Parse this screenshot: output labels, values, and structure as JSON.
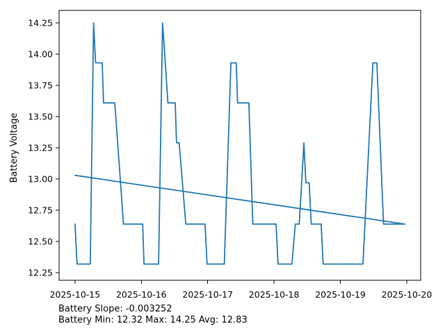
{
  "window": {
    "background": "#ffffff"
  },
  "colors": {
    "line": "#1f77b4",
    "trend": "#1f77b4",
    "ylabel": "#1f77b4",
    "axis": "#000000",
    "text": "#000000"
  },
  "chart_data": {
    "type": "line",
    "title": "",
    "xlabel": "",
    "ylabel": "Battery Voltage",
    "grid": false,
    "legend": "none",
    "x_tick_labels": [
      "2025-10-15",
      "2025-10-16",
      "2025-10-17",
      "2025-10-18",
      "2025-10-19",
      "2025-10-20"
    ],
    "x_tick_days": [
      0,
      1,
      2,
      3,
      4,
      5
    ],
    "y_ticks": [
      12.25,
      12.5,
      12.75,
      13.0,
      13.25,
      13.5,
      13.75,
      14.0,
      14.25
    ],
    "xlim_days": [
      -0.24,
      5.21
    ],
    "ylim": [
      12.19,
      14.35
    ],
    "series": [
      {
        "name": "battery-voltage",
        "points": [
          [
            0.0,
            12.64
          ],
          [
            0.03,
            12.32
          ],
          [
            0.23,
            12.32
          ],
          [
            0.28,
            14.25
          ],
          [
            0.31,
            13.93
          ],
          [
            0.41,
            13.93
          ],
          [
            0.43,
            13.61
          ],
          [
            0.6,
            13.61
          ],
          [
            0.73,
            12.64
          ],
          [
            1.02,
            12.64
          ],
          [
            1.04,
            12.32
          ],
          [
            1.26,
            12.32
          ],
          [
            1.32,
            14.25
          ],
          [
            1.36,
            13.93
          ],
          [
            1.4,
            13.61
          ],
          [
            1.51,
            13.61
          ],
          [
            1.53,
            13.29
          ],
          [
            1.57,
            13.29
          ],
          [
            1.67,
            12.64
          ],
          [
            1.96,
            12.64
          ],
          [
            1.99,
            12.32
          ],
          [
            2.25,
            12.32
          ],
          [
            2.35,
            13.93
          ],
          [
            2.43,
            13.93
          ],
          [
            2.45,
            13.61
          ],
          [
            2.62,
            13.61
          ],
          [
            2.68,
            12.64
          ],
          [
            3.03,
            12.64
          ],
          [
            3.06,
            12.32
          ],
          [
            3.27,
            12.32
          ],
          [
            3.32,
            12.64
          ],
          [
            3.38,
            12.64
          ],
          [
            3.45,
            13.29
          ],
          [
            3.48,
            12.97
          ],
          [
            3.53,
            12.97
          ],
          [
            3.56,
            12.64
          ],
          [
            3.71,
            12.64
          ],
          [
            3.74,
            12.32
          ],
          [
            4.34,
            12.32
          ],
          [
            4.49,
            13.93
          ],
          [
            4.55,
            13.93
          ],
          [
            4.65,
            12.64
          ],
          [
            4.97,
            12.64
          ]
        ]
      },
      {
        "name": "trend",
        "points": [
          [
            0.0,
            13.03
          ],
          [
            4.97,
            12.64
          ]
        ]
      }
    ],
    "annotations": [
      "Battery Slope: -0.003252",
      "Battery Min: 12.32 Max: 14.25 Avg: 12.83"
    ],
    "stats": {
      "slope": -0.003252,
      "min": 12.32,
      "max": 14.25,
      "avg": 12.83
    }
  }
}
